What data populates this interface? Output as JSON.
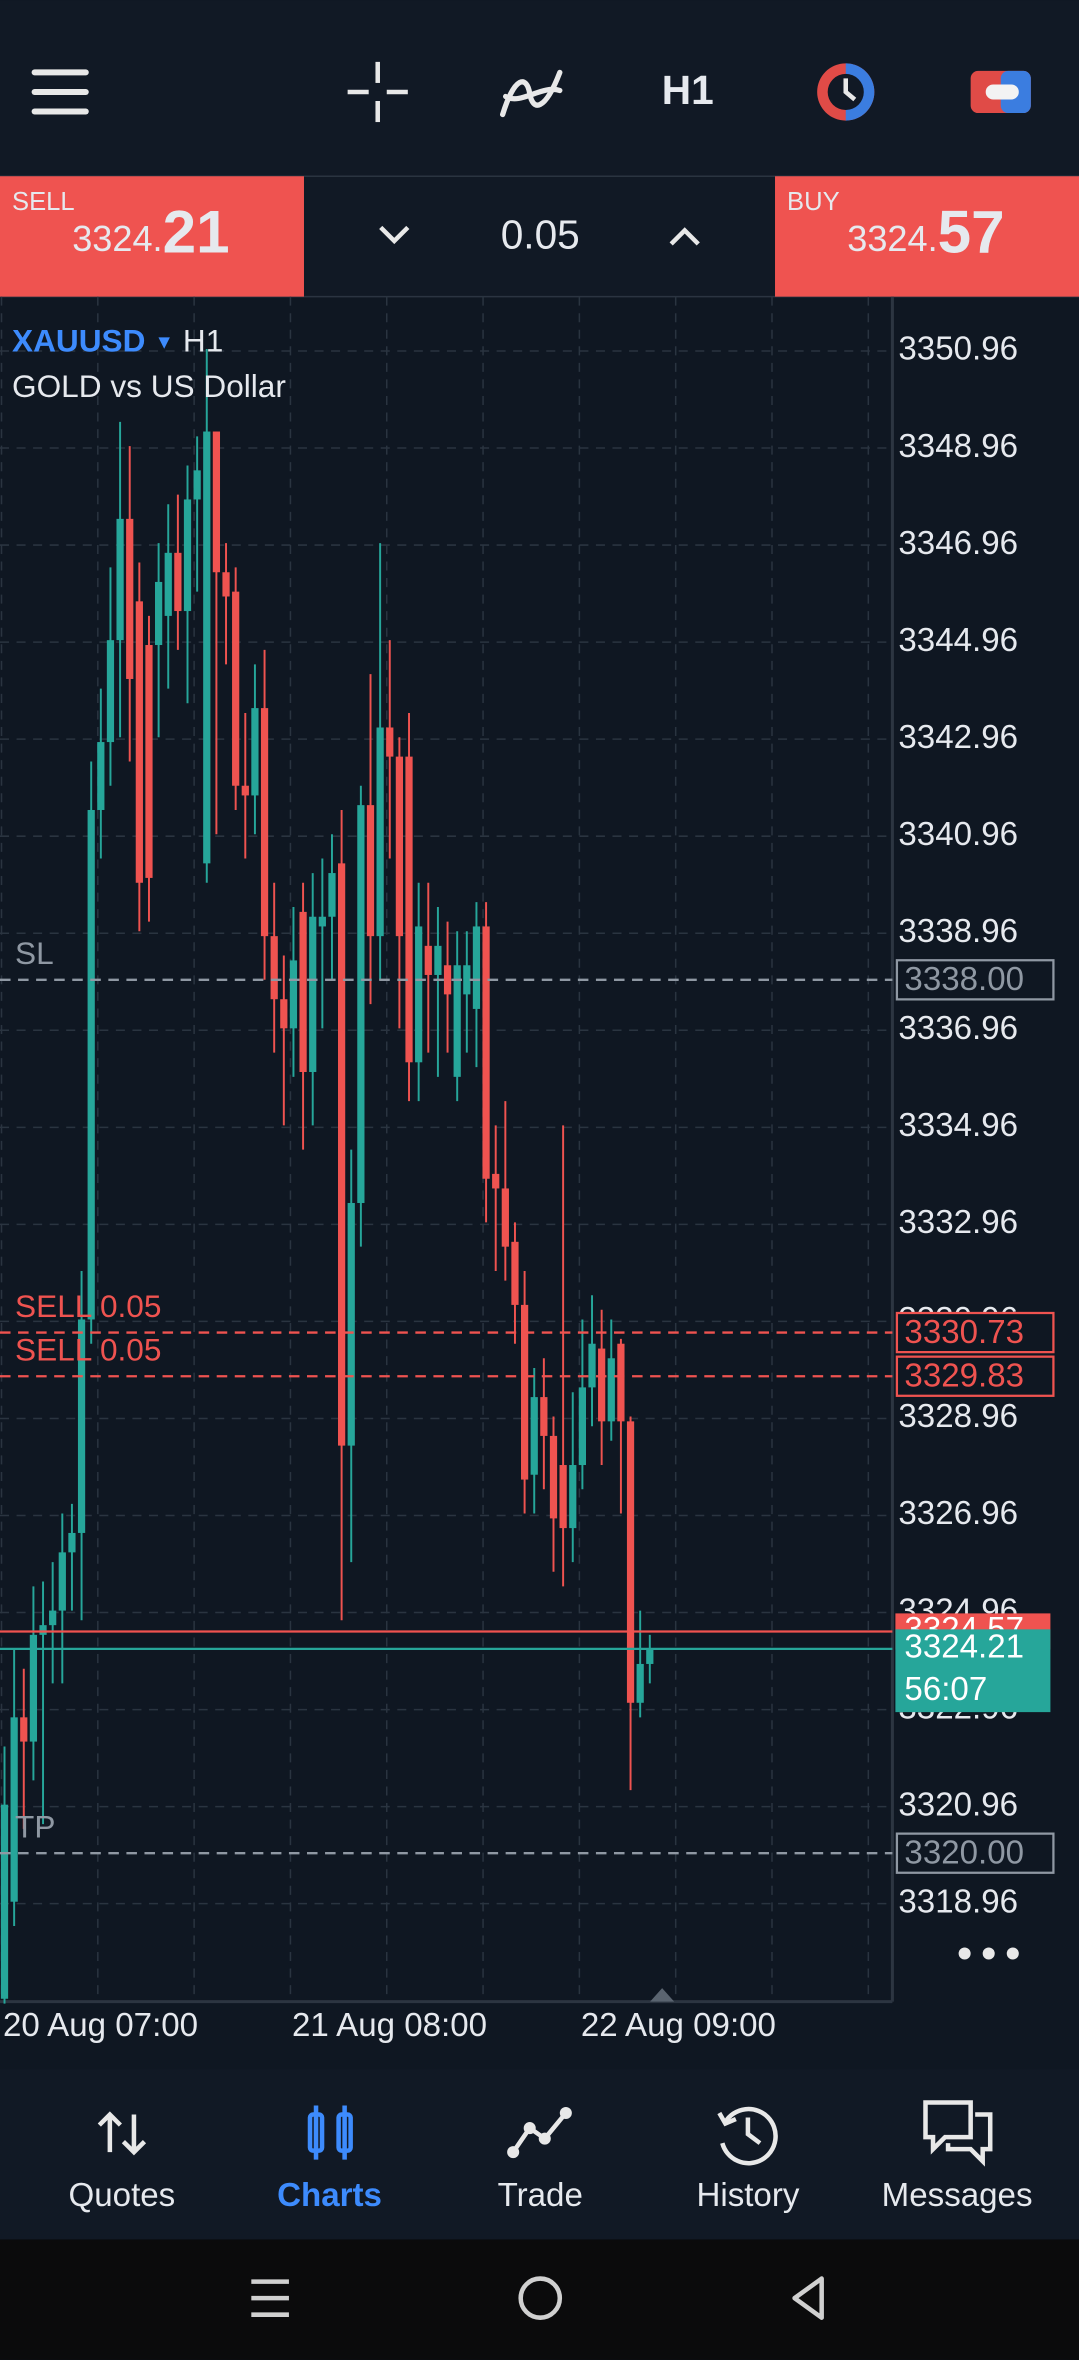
{
  "top_bar": {
    "timeframe": "H1"
  },
  "trade_bar": {
    "sell": {
      "label": "SELL",
      "price_small": "3324.",
      "price_large": "21"
    },
    "volume": "0.05",
    "buy": {
      "label": "BUY",
      "price_small": "3324.",
      "price_large": "57"
    }
  },
  "chart_data": {
    "type": "candlestick",
    "symbol": "XAUUSD",
    "timeframe": "H1",
    "description": "GOLD vs US Dollar",
    "up_color": "#26a69a",
    "down_color": "#ef5350",
    "x": [
      "20 Aug 07:00",
      null,
      null,
      null,
      null,
      null,
      null,
      null,
      null,
      null,
      null,
      null,
      null,
      null,
      null,
      null,
      null,
      null,
      null,
      null,
      null,
      null,
      null,
      null,
      null,
      null,
      null,
      null,
      null,
      null,
      "21 Aug 08:00",
      null,
      null,
      null,
      null,
      null,
      null,
      null,
      null,
      null,
      null,
      null,
      null,
      null,
      null,
      null,
      null,
      null,
      null,
      null,
      null,
      null,
      null,
      null,
      null,
      null,
      null,
      null,
      null,
      null,
      "22 Aug 09:00",
      null,
      null,
      null,
      null,
      null,
      null,
      null
    ],
    "open": [
      3317.0,
      3319.0,
      3322.8,
      3322.3,
      3324.5,
      3324.7,
      3325.0,
      3326.2,
      3326.6,
      3331.0,
      3341.5,
      3342.9,
      3345.0,
      3347.5,
      3345.8,
      3344.9,
      3344.9,
      3345.5,
      3346.8,
      3345.6,
      3347.9,
      3340.4,
      3349.3,
      3346.4,
      3346.0,
      3342.0,
      3341.8,
      3343.6,
      3338.9,
      3337.6,
      3337.0,
      3339.4,
      3336.1,
      3339.1,
      3339.3,
      3340.4,
      3328.4,
      3333.4,
      3341.6,
      3338.9,
      3343.2,
      3342.6,
      3342.6,
      3336.3,
      3338.7,
      3338.1,
      3338.3,
      3336.0,
      3337.7,
      3337.4,
      3339.1,
      3334.0,
      3333.7,
      3332.6,
      3331.3,
      3327.8,
      3329.4,
      3328.6,
      3328.0,
      3326.7,
      3328.0,
      3329.6,
      3330.4,
      3328.9,
      3330.5,
      3328.9,
      3323.1,
      3323.9
    ],
    "high": [
      3322.2,
      3324.2,
      3323.8,
      3325.5,
      3325.6,
      3326.0,
      3327.0,
      3327.2,
      3332.0,
      3342.5,
      3344.0,
      3346.5,
      3349.5,
      3349.0,
      3346.6,
      3345.5,
      3347.0,
      3347.8,
      3348.0,
      3348.6,
      3349.2,
      3351.0,
      3349.3,
      3347.0,
      3346.5,
      3343.5,
      3344.5,
      3344.8,
      3340.0,
      3338.5,
      3339.5,
      3340.0,
      3340.2,
      3340.5,
      3341.0,
      3341.5,
      3334.5,
      3342.0,
      3344.3,
      3347.0,
      3345.0,
      3343.0,
      3343.5,
      3340.0,
      3340.0,
      3339.5,
      3339.2,
      3339.0,
      3339.0,
      3339.6,
      3339.6,
      3335.0,
      3335.5,
      3333.0,
      3332.0,
      3330.0,
      3330.2,
      3329.0,
      3335.0,
      3329.5,
      3331.0,
      3331.5,
      3331.2,
      3331.0,
      3330.6,
      3329.0,
      3325.0,
      3324.5
    ],
    "low": [
      3316.9,
      3318.5,
      3320.5,
      3321.5,
      3320.6,
      3323.5,
      3323.5,
      3325.0,
      3324.8,
      3330.5,
      3340.5,
      3342.0,
      3343.0,
      3342.5,
      3339.0,
      3339.2,
      3343.0,
      3344.0,
      3344.8,
      3343.7,
      3346.0,
      3340.0,
      3341.0,
      3344.5,
      3341.5,
      3340.5,
      3341.0,
      3338.0,
      3336.5,
      3335.0,
      3336.0,
      3334.5,
      3335.0,
      3337.0,
      3338.0,
      3324.8,
      3326.0,
      3332.5,
      3337.5,
      3338.0,
      3340.5,
      3337.0,
      3335.5,
      3335.5,
      3336.5,
      3336.0,
      3336.5,
      3335.5,
      3336.5,
      3336.2,
      3333.0,
      3332.0,
      3331.8,
      3330.5,
      3327.0,
      3327.0,
      3327.5,
      3325.8,
      3325.5,
      3326.0,
      3327.5,
      3328.8,
      3328.0,
      3328.5,
      3327.0,
      3321.3,
      3322.8,
      3323.5
    ],
    "close": [
      3321.0,
      3322.8,
      3322.3,
      3324.5,
      3324.7,
      3325.0,
      3326.2,
      3326.6,
      3331.0,
      3341.5,
      3342.9,
      3345.0,
      3347.5,
      3344.2,
      3340.0,
      3340.1,
      3346.2,
      3346.8,
      3345.6,
      3347.9,
      3348.5,
      3349.3,
      3346.4,
      3345.9,
      3342.0,
      3341.8,
      3343.6,
      3338.9,
      3337.6,
      3337.0,
      3338.4,
      3336.1,
      3339.3,
      3339.3,
      3340.2,
      3328.4,
      3333.4,
      3341.6,
      3338.9,
      3343.2,
      3342.6,
      3338.9,
      3336.3,
      3339.1,
      3338.1,
      3338.7,
      3337.7,
      3338.3,
      3338.3,
      3339.1,
      3333.9,
      3333.7,
      3332.5,
      3331.3,
      3327.7,
      3329.4,
      3328.6,
      3326.9,
      3326.7,
      3328.0,
      3329.6,
      3330.5,
      3328.9,
      3330.2,
      3328.9,
      3323.1,
      3323.9,
      3324.21
    ],
    "ylim": [
      3316.94,
      3352.08
    ],
    "yticks": [
      3318.96,
      3320.96,
      3322.96,
      3324.96,
      3326.96,
      3328.96,
      3330.96,
      3332.96,
      3334.96,
      3336.96,
      3338.96,
      3340.96,
      3342.96,
      3344.96,
      3346.96,
      3348.96,
      3350.96
    ],
    "grid": true,
    "levels": [
      {
        "text": "SL",
        "price": {
          "value": 3338,
          "label": "3338.00"
        },
        "color": "#8f98a3"
      },
      {
        "text": "SELL 0.05",
        "price": 3330.73,
        "color": "#ef5350"
      },
      {
        "text": "SELL 0.05",
        "price": 3329.83,
        "color": "#ef5350"
      },
      {
        "text": "TP",
        "price": {
          "value": 3320,
          "label": "3320.00"
        },
        "color": "#8f98a3"
      }
    ],
    "ask": 3324.57,
    "ask_color": "#ef5350",
    "bid": 3324.21,
    "bid_color": "#26a69a",
    "bar_timer": "56:07"
  },
  "bottom_nav": {
    "items": [
      "Quotes",
      "Charts",
      "Trade",
      "History",
      "Messages"
    ]
  }
}
